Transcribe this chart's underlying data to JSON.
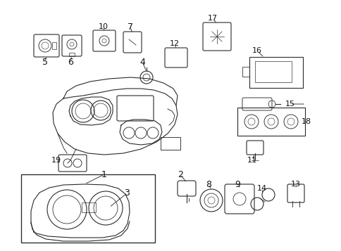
{
  "background_color": "#ffffff",
  "line_color": "#2a2a2a",
  "label_color": "#111111",
  "fig_width": 4.85,
  "fig_height": 3.57,
  "dpi": 100
}
